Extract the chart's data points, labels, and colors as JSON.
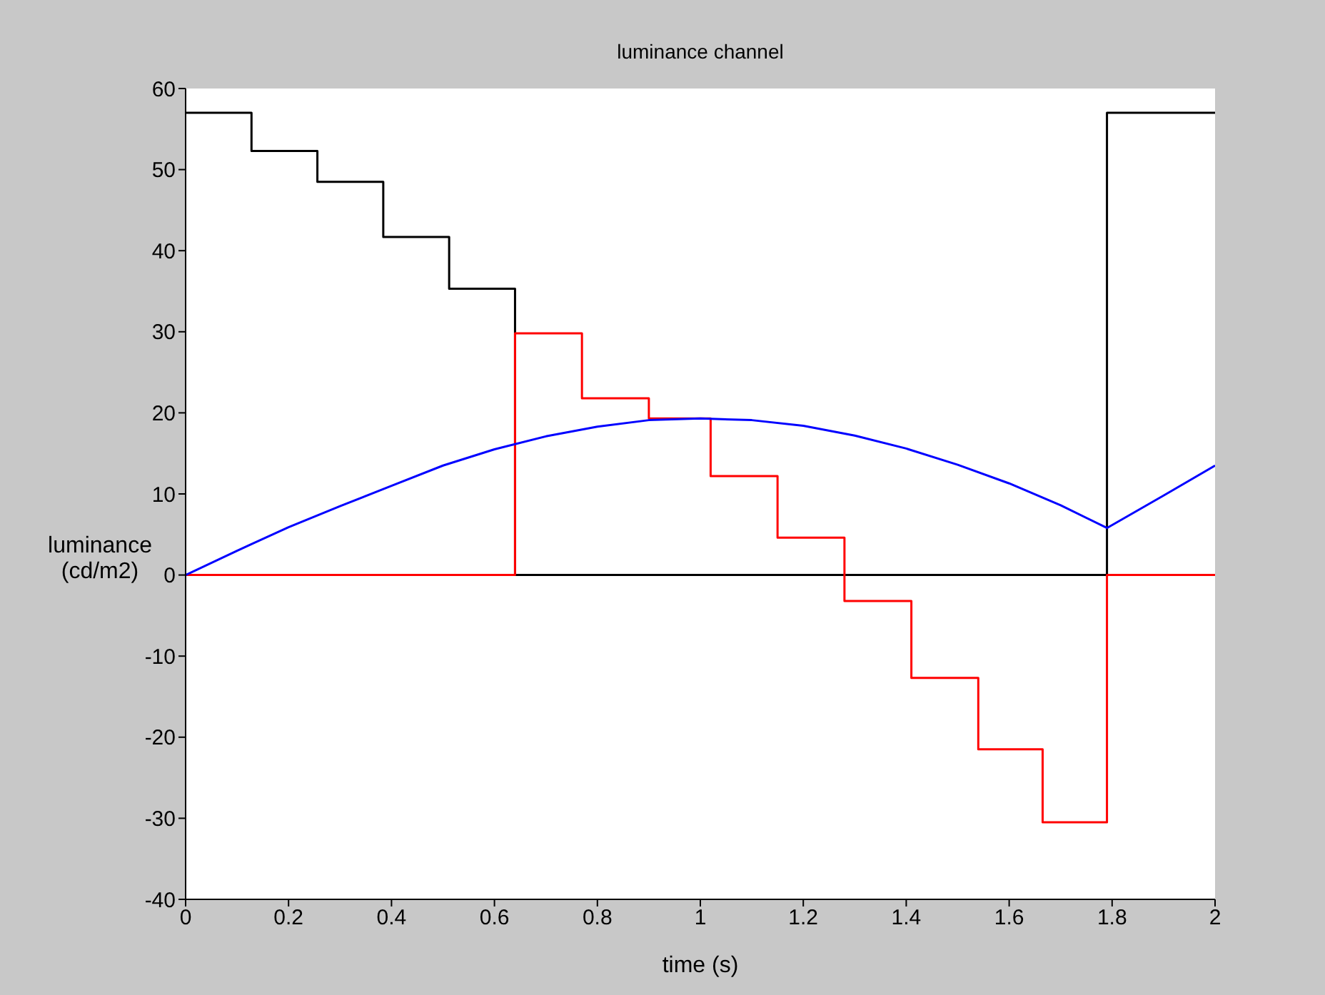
{
  "chart_data": {
    "type": "line",
    "title": "luminance channel",
    "xlabel": "time (s)",
    "ylabel": "luminance (cd/m2)",
    "xlim": [
      0,
      2
    ],
    "xticks": [
      0,
      0.2,
      0.4,
      0.6,
      0.8,
      1,
      1.2,
      1.4,
      1.6,
      1.8,
      2
    ],
    "ylim": [
      -40,
      60
    ],
    "yticks": [
      -40,
      -30,
      -20,
      -10,
      0,
      10,
      20,
      30,
      40,
      50,
      60
    ],
    "grid": false,
    "legend": false,
    "marker": "none",
    "line_style": "solid",
    "series": [
      {
        "type": "step",
        "color": "#000000",
        "x": [
          0,
          0.128,
          0.256,
          0.384,
          0.512,
          0.64,
          1.79,
          2
        ],
        "values": [
          57,
          52.3,
          48.5,
          41.7,
          35.3,
          0,
          57,
          57
        ]
      },
      {
        "type": "step",
        "color": "#ff0000",
        "x": [
          0,
          0.64,
          0.77,
          0.9,
          1.02,
          1.15,
          1.28,
          1.41,
          1.54,
          1.665,
          1.79,
          2
        ],
        "values": [
          0,
          29.8,
          21.8,
          19.3,
          12.2,
          4.6,
          -3.2,
          -12.7,
          -21.5,
          -30.5,
          0,
          0
        ]
      },
      {
        "color": "#0000ff",
        "x": [
          0,
          0.1,
          0.2,
          0.3,
          0.4,
          0.5,
          0.6,
          0.7,
          0.8,
          0.9,
          1,
          1.1,
          1.2,
          1.3,
          1.4,
          1.5,
          1.6,
          1.7,
          1.79,
          1.9,
          2
        ],
        "values": [
          0,
          3,
          5.9,
          8.5,
          11,
          13.5,
          15.5,
          17.1,
          18.3,
          19.1,
          19.3,
          19.1,
          18.4,
          17.2,
          15.6,
          13.6,
          11.3,
          8.6,
          5.8,
          9.8,
          13.5
        ]
      }
    ]
  }
}
